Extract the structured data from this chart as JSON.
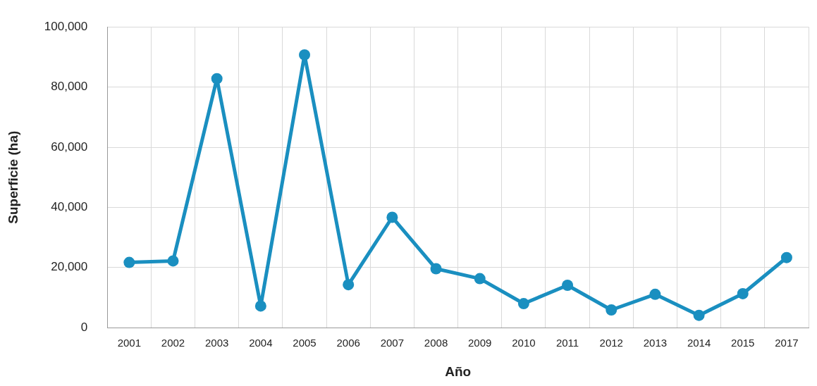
{
  "chart_data": {
    "type": "line",
    "xlabel": "Año",
    "ylabel": "Superficie (ha)",
    "categories": [
      "2001",
      "2002",
      "2003",
      "2004",
      "2005",
      "2006",
      "2007",
      "2008",
      "2009",
      "2010",
      "2011",
      "2012",
      "2013",
      "2014",
      "2015",
      "2017"
    ],
    "series": [
      {
        "color": "#1a8fc0",
        "values": [
          21700,
          22200,
          82800,
          7200,
          90700,
          14300,
          36700,
          19600,
          16300,
          8000,
          14100,
          5900,
          11100,
          4100,
          11300,
          23300
        ]
      }
    ],
    "ylim": [
      0,
      100000
    ],
    "yticks": [
      0,
      {
        "value": 20000,
        "label": "20,000"
      },
      {
        "value": 40000,
        "label": "40,000"
      },
      {
        "value": 60000,
        "label": "60,000"
      },
      {
        "value": 80000,
        "label": "80,000"
      },
      {
        "value": 100000,
        "label": "100,000"
      }
    ],
    "grid": true,
    "legend": false,
    "marker": "circle",
    "line_style": "solid"
  }
}
